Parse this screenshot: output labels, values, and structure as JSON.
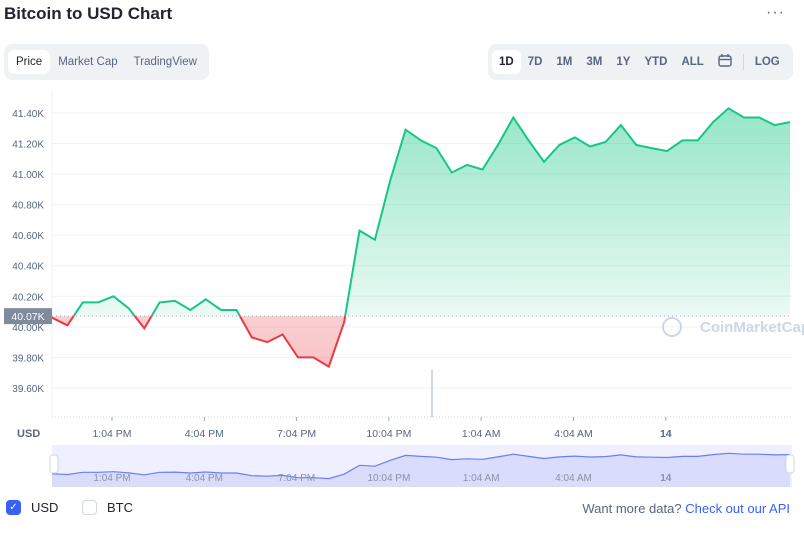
{
  "header": {
    "title": "Bitcoin to USD Chart",
    "more_icon": "ellipsis-icon"
  },
  "tabs": [
    {
      "label": "Price",
      "active": true
    },
    {
      "label": "Market Cap"
    },
    {
      "label": "TradingView"
    }
  ],
  "ranges": [
    {
      "label": "1D",
      "active": true
    },
    {
      "label": "7D"
    },
    {
      "label": "1M"
    },
    {
      "label": "3M"
    },
    {
      "label": "1Y"
    },
    {
      "label": "YTD"
    },
    {
      "label": "ALL"
    }
  ],
  "calendar_icon": "calendar-icon",
  "log_label": "LOG",
  "watermark": "CoinMarketCap",
  "chart_data": {
    "type": "area",
    "ylabel": "USD",
    "y_unit": "K",
    "ylim": [
      39.41,
      41.55
    ],
    "y_ticks": [
      "39.60K",
      "39.80K",
      "40.00K",
      "40.20K",
      "40.40K",
      "40.60K",
      "40.80K",
      "41.00K",
      "41.20K",
      "41.40K"
    ],
    "x_ticks": [
      "1:04 PM",
      "4:04 PM",
      "7:04 PM",
      "10:04 PM",
      "1:04 AM",
      "4:04 AM",
      "14"
    ],
    "reference_price": 40.07,
    "reference_label": "40.07K",
    "colors": {
      "up": "#16c784",
      "down": "#ea3943",
      "navigator": "#6b7cff"
    },
    "grid": true,
    "x": [
      "11:04 AM",
      "11:34 AM",
      "12:04 PM",
      "12:34 PM",
      "1:04 PM",
      "1:34 PM",
      "2:04 PM",
      "2:34 PM",
      "3:04 PM",
      "3:34 PM",
      "4:04 PM",
      "4:34 PM",
      "5:04 PM",
      "5:34 PM",
      "6:04 PM",
      "6:34 PM",
      "7:04 PM",
      "7:34 PM",
      "8:04 PM",
      "8:34 PM",
      "9:04 PM",
      "9:34 PM",
      "10:04 PM",
      "10:34 PM",
      "11:04 PM",
      "11:34 PM",
      "12:04 AM",
      "12:34 AM",
      "1:04 AM",
      "1:34 AM",
      "2:04 AM",
      "2:34 AM",
      "3:04 AM",
      "3:34 AM",
      "4:04 AM",
      "4:34 AM",
      "5:04 AM",
      "5:34 AM",
      "6:04 AM",
      "6:34 AM",
      "7:04 AM",
      "7:34 AM",
      "8:04 AM",
      "8:34 AM",
      "9:04 AM",
      "9:34 AM",
      "10:04 AM",
      "10:34 AM",
      "11:04 AM"
    ],
    "values": [
      40.06,
      40.01,
      40.16,
      40.16,
      40.2,
      40.12,
      39.99,
      40.16,
      40.17,
      40.11,
      40.18,
      40.11,
      40.11,
      39.93,
      39.9,
      39.95,
      39.8,
      39.8,
      39.74,
      40.03,
      40.63,
      40.57,
      40.96,
      41.29,
      41.22,
      41.17,
      41.01,
      41.06,
      41.03,
      41.19,
      41.37,
      41.22,
      41.08,
      41.19,
      41.24,
      41.18,
      41.21,
      41.32,
      41.19,
      41.17,
      41.15,
      41.22,
      41.22,
      41.34,
      41.43,
      41.37,
      41.37,
      41.32,
      41.34
    ]
  },
  "footer": {
    "usd_label": "USD",
    "usd_checked": true,
    "btc_label": "BTC",
    "btc_checked": false,
    "api_text": "Want more data?",
    "api_link": "Check out our API"
  }
}
